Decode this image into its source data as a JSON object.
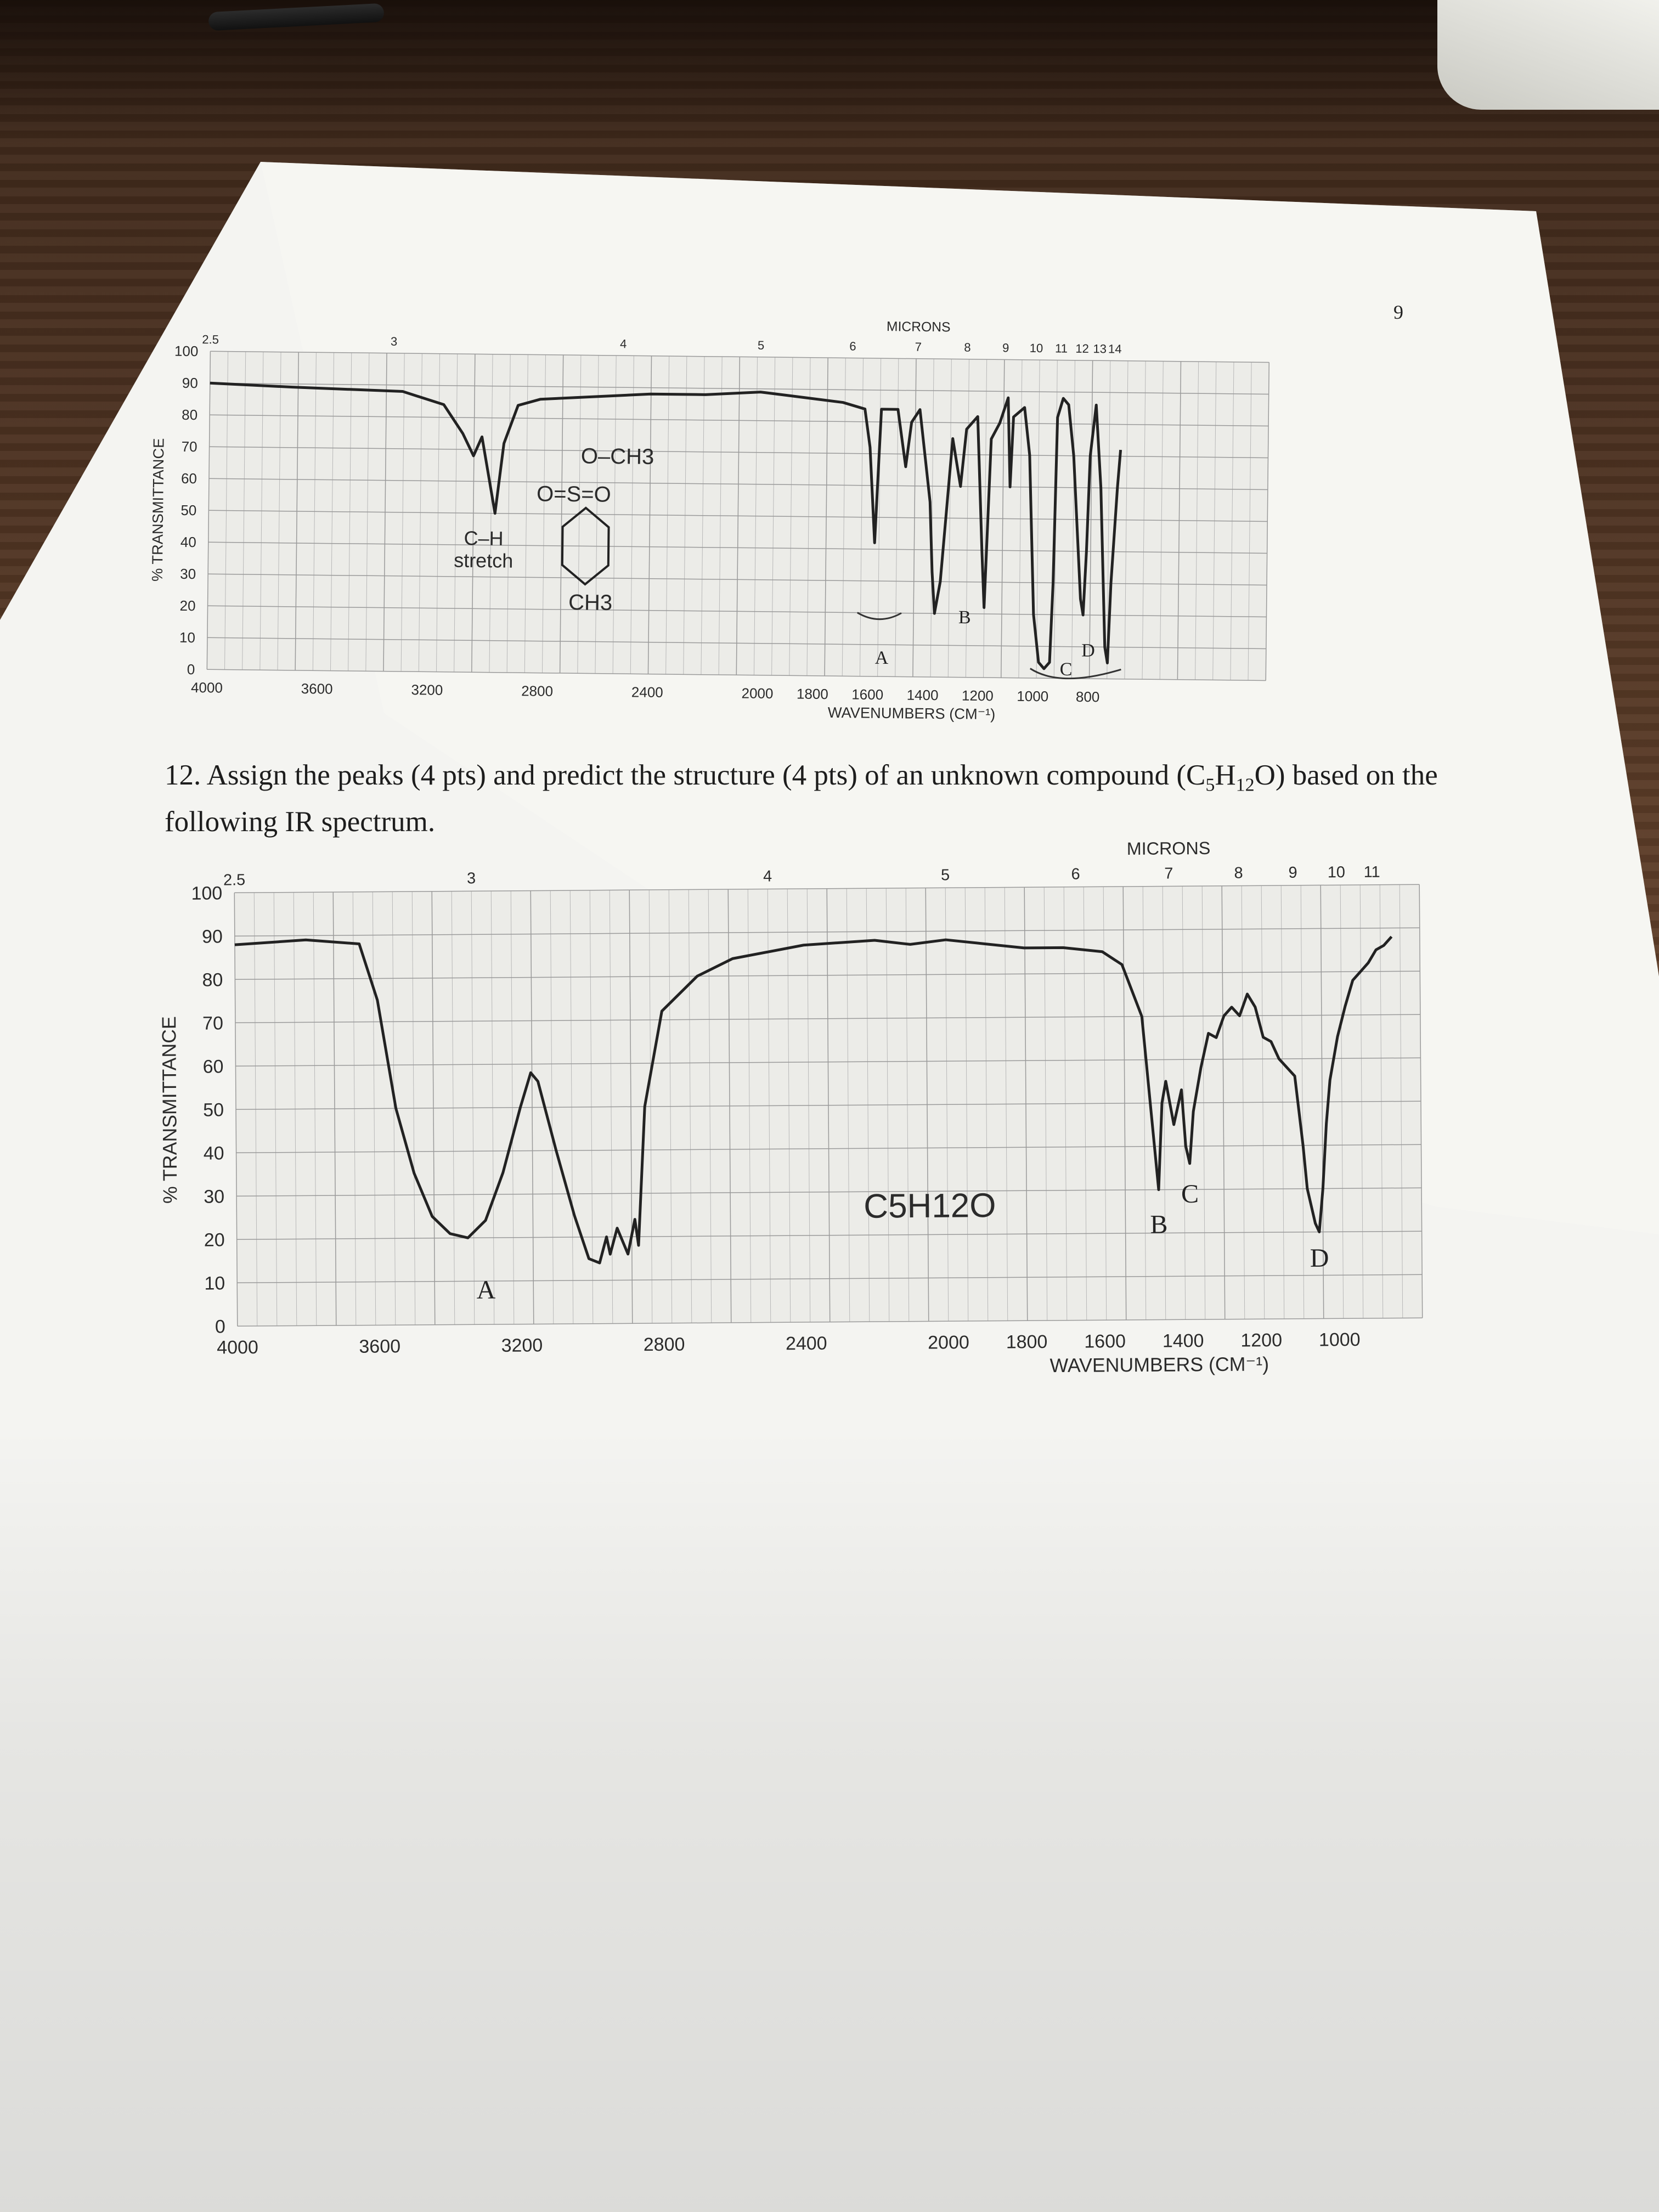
{
  "page_number": "9",
  "question": {
    "number": "12.",
    "text_before": "Assign the peaks (4 pts) and predict the structure (4 pts) of an unknown compound (C",
    "sub5": "5",
    "mid": "H",
    "sub12": "12",
    "text_after": "O) based on the following IR spectrum."
  },
  "chart_data": [
    {
      "type": "line",
      "title": "",
      "xlabel": "WAVENUMBERS (CM⁻¹)",
      "ylabel": "% TRANSMITTANCE",
      "top_axis_label": "MICRONS",
      "x_ticks": [
        "4000",
        "3600",
        "3200",
        "2800",
        "2400",
        "2000",
        "1800",
        "1600",
        "1400",
        "1200",
        "1000",
        "800"
      ],
      "micron_ticks": [
        "2.5",
        "3",
        "4",
        "5",
        "6",
        "7",
        "8",
        "9",
        "10",
        "11",
        "12",
        "13",
        "14"
      ],
      "y_ticks": [
        "0",
        "10",
        "20",
        "30",
        "40",
        "50",
        "60",
        "70",
        "80",
        "90",
        "100"
      ],
      "ylim": [
        0,
        100
      ],
      "structure_labels": [
        "O–CH3",
        "O=S=O",
        "CH3"
      ],
      "annotation_ch": [
        "C–H",
        "stretch"
      ],
      "peak_labels": [
        "A",
        "B",
        "C",
        "D"
      ],
      "series": [
        {
          "values": [
            [
              4000,
              90
            ],
            [
              3700,
              89
            ],
            [
              3300,
              88
            ],
            [
              3150,
              84
            ],
            [
              3080,
              75
            ],
            [
              3040,
              68
            ],
            [
              3010,
              74
            ],
            [
              2960,
              50
            ],
            [
              2930,
              72
            ],
            [
              2880,
              84
            ],
            [
              2800,
              86
            ],
            [
              2600,
              87
            ],
            [
              2400,
              88
            ],
            [
              2200,
              88
            ],
            [
              2000,
              89
            ],
            [
              1900,
              88
            ],
            [
              1800,
              87
            ],
            [
              1700,
              86
            ],
            [
              1620,
              84
            ],
            [
              1600,
              72
            ],
            [
              1580,
              42
            ],
            [
              1560,
              84
            ],
            [
              1500,
              84
            ],
            [
              1470,
              66
            ],
            [
              1450,
              80
            ],
            [
              1420,
              84
            ],
            [
              1380,
              55
            ],
            [
              1370,
              33
            ],
            [
              1360,
              20
            ],
            [
              1340,
              30
            ],
            [
              1300,
              75
            ],
            [
              1270,
              60
            ],
            [
              1250,
              78
            ],
            [
              1210,
              82
            ],
            [
              1190,
              40
            ],
            [
              1180,
              22
            ],
            [
              1160,
              75
            ],
            [
              1130,
              80
            ],
            [
              1100,
              88
            ],
            [
              1090,
              60
            ],
            [
              1080,
              82
            ],
            [
              1040,
              85
            ],
            [
              1020,
              70
            ],
            [
              1000,
              20
            ],
            [
              980,
              5
            ],
            [
              960,
              3
            ],
            [
              940,
              5
            ],
            [
              930,
              30
            ],
            [
              920,
              82
            ],
            [
              900,
              88
            ],
            [
              880,
              86
            ],
            [
              860,
              70
            ],
            [
              840,
              40
            ],
            [
              830,
              25
            ],
            [
              820,
              20
            ],
            [
              810,
              40
            ],
            [
              800,
              70
            ],
            [
              780,
              86
            ],
            [
              760,
              60
            ],
            [
              740,
              10
            ],
            [
              730,
              5
            ],
            [
              720,
              30
            ],
            [
              700,
              60
            ],
            [
              690,
              72
            ]
          ]
        }
      ]
    },
    {
      "type": "line",
      "title": "",
      "xlabel": "WAVENUMBERS (CM⁻¹)",
      "ylabel": "% TRANSMITTANCE",
      "top_axis_label": "MICRONS",
      "x_ticks": [
        "4000",
        "3600",
        "3200",
        "2800",
        "2400",
        "2000",
        "1800",
        "1600",
        "1400",
        "1200",
        "1000"
      ],
      "micron_ticks": [
        "2.5",
        "3",
        "4",
        "5",
        "6",
        "7",
        "8",
        "9",
        "10",
        "11"
      ],
      "y_ticks": [
        "0",
        "10",
        "20",
        "30",
        "40",
        "50",
        "60",
        "70",
        "80",
        "90",
        "100"
      ],
      "ylim": [
        0,
        100
      ],
      "formula": "C5H12O",
      "peak_labels": [
        "A",
        "B",
        "C",
        "D"
      ],
      "series": [
        {
          "values": [
            [
              4000,
              88
            ],
            [
              3800,
              89
            ],
            [
              3650,
              88
            ],
            [
              3600,
              75
            ],
            [
              3550,
              50
            ],
            [
              3500,
              35
            ],
            [
              3450,
              25
            ],
            [
              3400,
              21
            ],
            [
              3350,
              20
            ],
            [
              3300,
              24
            ],
            [
              3250,
              35
            ],
            [
              3200,
              50
            ],
            [
              3170,
              58
            ],
            [
              3150,
              56
            ],
            [
              3100,
              40
            ],
            [
              3050,
              25
            ],
            [
              3010,
              15
            ],
            [
              2980,
              14
            ],
            [
              2960,
              20
            ],
            [
              2950,
              16
            ],
            [
              2930,
              22
            ],
            [
              2900,
              16
            ],
            [
              2880,
              24
            ],
            [
              2870,
              18
            ],
            [
              2850,
              50
            ],
            [
              2800,
              72
            ],
            [
              2700,
              80
            ],
            [
              2600,
              84
            ],
            [
              2400,
              87
            ],
            [
              2200,
              88
            ],
            [
              2100,
              87
            ],
            [
              2000,
              88
            ],
            [
              1900,
              87
            ],
            [
              1800,
              86
            ],
            [
              1700,
              86
            ],
            [
              1600,
              85
            ],
            [
              1550,
              82
            ],
            [
              1500,
              70
            ],
            [
              1470,
              40
            ],
            [
              1460,
              30
            ],
            [
              1450,
              50
            ],
            [
              1440,
              55
            ],
            [
              1420,
              45
            ],
            [
              1400,
              53
            ],
            [
              1390,
              40
            ],
            [
              1380,
              36
            ],
            [
              1370,
              48
            ],
            [
              1350,
              58
            ],
            [
              1330,
              66
            ],
            [
              1310,
              65
            ],
            [
              1290,
              70
            ],
            [
              1270,
              72
            ],
            [
              1250,
              70
            ],
            [
              1230,
              75
            ],
            [
              1210,
              72
            ],
            [
              1190,
              65
            ],
            [
              1170,
              64
            ],
            [
              1150,
              60
            ],
            [
              1130,
              58
            ],
            [
              1110,
              56
            ],
            [
              1090,
              40
            ],
            [
              1080,
              30
            ],
            [
              1060,
              22
            ],
            [
              1050,
              20
            ],
            [
              1040,
              30
            ],
            [
              1030,
              45
            ],
            [
              1020,
              55
            ],
            [
              1000,
              65
            ],
            [
              980,
              72
            ],
            [
              960,
              78
            ],
            [
              940,
              80
            ],
            [
              920,
              82
            ],
            [
              900,
              85
            ],
            [
              880,
              86
            ],
            [
              860,
              88
            ]
          ]
        }
      ]
    }
  ]
}
